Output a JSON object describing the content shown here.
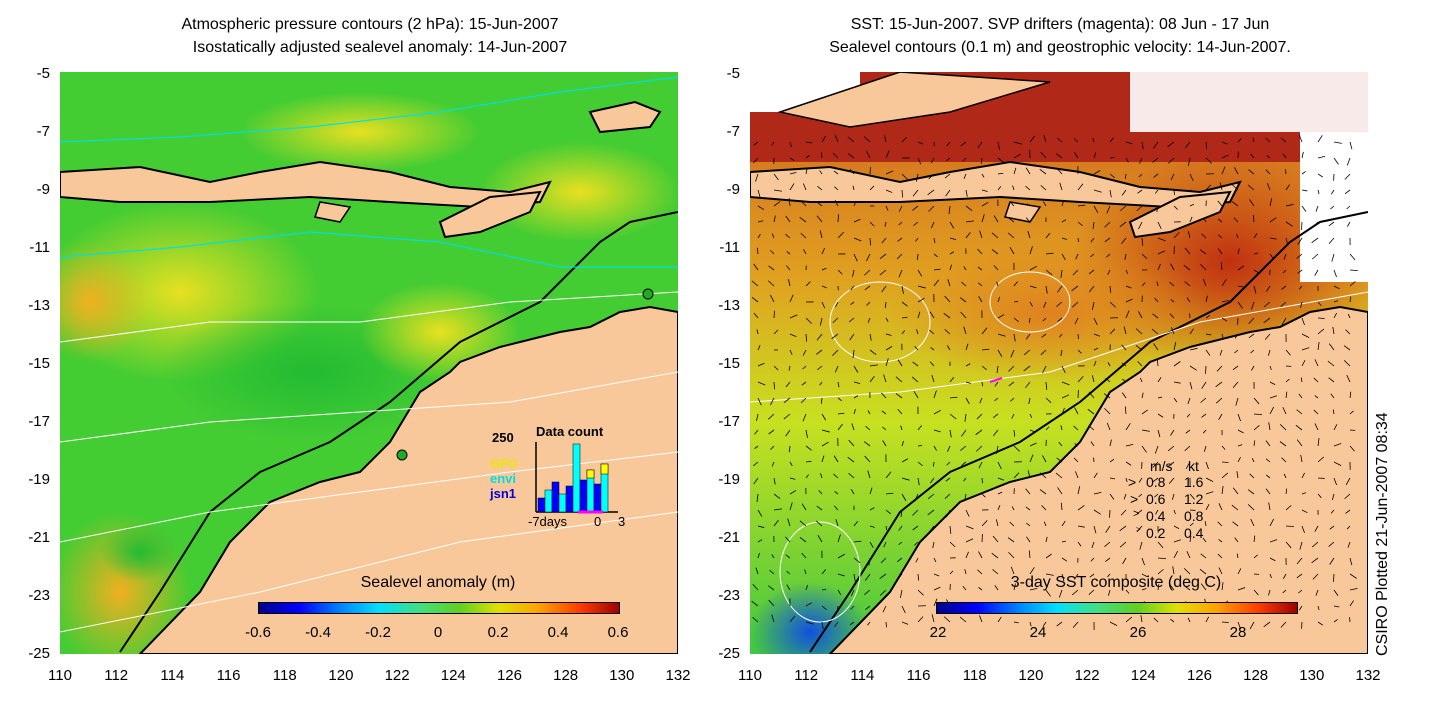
{
  "left_panel": {
    "title_line1": "Atmospheric pressure contours (2 hPa): 15-Jun-2007",
    "title_line2": "Isostatically adjusted sealevel anomaly: 14-Jun-2007",
    "colorbar_title": "Sealevel anomaly (m)",
    "colorbar_ticks": [
      "-0.6",
      "-0.4",
      "-0.2",
      "0",
      "0.2",
      "0.4",
      "0.6"
    ],
    "data_count": {
      "title": "Data count",
      "ymax_label": "250",
      "x_labels": [
        "-7days",
        "0",
        "3"
      ],
      "legend": [
        "GFO",
        "envi",
        "jsn1"
      ],
      "colors": {
        "GFO": "#ffff00",
        "envi": "#00ffff",
        "jsn1": "#0000ff"
      }
    }
  },
  "right_panel": {
    "title_line1": "SST: 15-Jun-2007. SVP drifters (magenta): 08 Jun - 17 Jun",
    "title_line2": "Sealevel contours (0.1 m) and geostrophic velocity: 14-Jun-2007.",
    "colorbar_title": "3-day SST composite (deg C)",
    "colorbar_ticks": [
      "22",
      "24",
      "26",
      "28"
    ],
    "velocity_legend": {
      "headers": [
        "m/s",
        "kt"
      ],
      "rows": [
        [
          "0.8",
          "1.6"
        ],
        [
          "0.6",
          "1.2"
        ],
        [
          "0.4",
          "0.8"
        ],
        [
          "0.2",
          "0.4"
        ]
      ]
    }
  },
  "axes": {
    "y_ticks": [
      "-5",
      "-7",
      "-9",
      "-11",
      "-13",
      "-15",
      "-17",
      "-19",
      "-21",
      "-23",
      "-25"
    ],
    "x_ticks": [
      "110",
      "112",
      "114",
      "116",
      "118",
      "120",
      "122",
      "124",
      "126",
      "128",
      "130",
      "132"
    ]
  },
  "side_label": "CSIRO Plotted 21-Jun-2007 08:34",
  "colors": {
    "land": "#f8c89a",
    "sea_green": "#33cc33",
    "sst_warm": "#b0281a"
  }
}
